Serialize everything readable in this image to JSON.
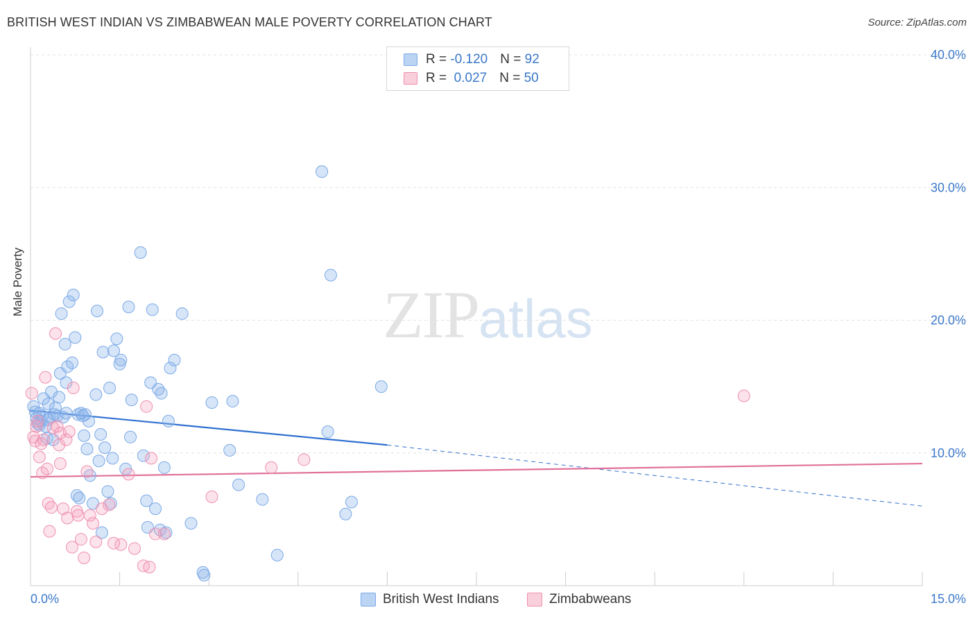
{
  "header": {
    "title": "BRITISH WEST INDIAN VS ZIMBABWEAN MALE POVERTY CORRELATION CHART",
    "source": "Source: ZipAtlas.com"
  },
  "watermark": {
    "zip": "ZIP",
    "atlas": "atlas"
  },
  "legend": {
    "rows": [
      {
        "r_label": "R = ",
        "r_value": "-0.120",
        "n_label": "N = ",
        "n_value": "92",
        "color": "#a8c6ef"
      },
      {
        "r_label": "R = ",
        "r_value": " 0.027",
        "n_label": "N = ",
        "n_value": "50",
        "color": "#f5b3c6"
      }
    ]
  },
  "bottom_legend": {
    "series1": "British West Indians",
    "series2": "Zimbabweans"
  },
  "colors": {
    "blue": "#7aa9e6",
    "blue_line": "#2f6fd0",
    "pink": "#ee8fae",
    "pink_line": "#e0709a",
    "tick": "#3a78c9"
  },
  "chart_data": {
    "type": "scatter",
    "title": "BRITISH WEST INDIAN VS ZIMBABWEAN MALE POVERTY CORRELATION CHART",
    "xlabel": "",
    "ylabel": "Male Poverty",
    "xlim": [
      0,
      15
    ],
    "ylim": [
      0,
      40
    ],
    "x_tick_labels": [
      "0.0%",
      "15.0%"
    ],
    "y_ticks": [
      10,
      20,
      30,
      40
    ],
    "y_tick_labels": [
      "10.0%",
      "20.0%",
      "30.0%",
      "40.0%"
    ],
    "series": [
      {
        "name": "British West Indians",
        "r": -0.12,
        "n": 92,
        "trend": {
          "x0": 0,
          "y0": 13.2,
          "x1": 6.0,
          "y1": 10.6,
          "dash_to_x": 15,
          "dash_to_y": 6.0
        },
        "points": [
          [
            0.05,
            13.5
          ],
          [
            0.08,
            13.1
          ],
          [
            0.1,
            12.6
          ],
          [
            0.12,
            12.2
          ],
          [
            0.15,
            13.0
          ],
          [
            0.18,
            12.4
          ],
          [
            0.2,
            12.8
          ],
          [
            0.22,
            14.1
          ],
          [
            0.25,
            12.0
          ],
          [
            0.28,
            11.1
          ],
          [
            0.3,
            13.7
          ],
          [
            0.32,
            12.7
          ],
          [
            0.35,
            14.6
          ],
          [
            0.38,
            11.0
          ],
          [
            0.4,
            12.9
          ],
          [
            0.42,
            13.4
          ],
          [
            0.45,
            12.8
          ],
          [
            0.48,
            14.2
          ],
          [
            0.5,
            16.0
          ],
          [
            0.52,
            20.5
          ],
          [
            0.55,
            12.7
          ],
          [
            0.58,
            18.2
          ],
          [
            0.6,
            15.3
          ],
          [
            0.62,
            16.5
          ],
          [
            0.65,
            21.4
          ],
          [
            0.7,
            16.8
          ],
          [
            0.72,
            21.9
          ],
          [
            0.75,
            18.7
          ],
          [
            0.78,
            6.8
          ],
          [
            0.8,
            12.9
          ],
          [
            0.82,
            6.6
          ],
          [
            0.85,
            13.0
          ],
          [
            0.88,
            12.8
          ],
          [
            0.9,
            11.3
          ],
          [
            0.92,
            12.9
          ],
          [
            0.95,
            10.3
          ],
          [
            0.98,
            12.4
          ],
          [
            1.0,
            8.3
          ],
          [
            1.05,
            6.2
          ],
          [
            1.1,
            14.4
          ],
          [
            1.12,
            20.7
          ],
          [
            1.15,
            9.4
          ],
          [
            1.18,
            11.4
          ],
          [
            1.2,
            4.0
          ],
          [
            1.22,
            17.6
          ],
          [
            1.25,
            10.4
          ],
          [
            1.3,
            7.1
          ],
          [
            1.33,
            14.9
          ],
          [
            1.38,
            9.6
          ],
          [
            1.4,
            17.7
          ],
          [
            1.45,
            18.6
          ],
          [
            1.5,
            16.7
          ],
          [
            1.52,
            17.0
          ],
          [
            1.6,
            8.8
          ],
          [
            1.65,
            21.0
          ],
          [
            1.68,
            11.2
          ],
          [
            1.7,
            14.0
          ],
          [
            1.85,
            25.1
          ],
          [
            1.9,
            9.8
          ],
          [
            1.95,
            6.4
          ],
          [
            1.97,
            4.4
          ],
          [
            2.02,
            15.3
          ],
          [
            2.05,
            20.8
          ],
          [
            2.1,
            5.8
          ],
          [
            2.15,
            14.8
          ],
          [
            2.18,
            4.2
          ],
          [
            2.2,
            14.5
          ],
          [
            2.25,
            8.9
          ],
          [
            2.28,
            4.0
          ],
          [
            2.32,
            12.4
          ],
          [
            2.35,
            16.4
          ],
          [
            2.42,
            17.0
          ],
          [
            2.55,
            20.5
          ],
          [
            2.7,
            4.7
          ],
          [
            2.9,
            1.0
          ],
          [
            2.92,
            0.8
          ],
          [
            3.05,
            13.8
          ],
          [
            3.35,
            10.2
          ],
          [
            3.4,
            13.9
          ],
          [
            3.5,
            7.6
          ],
          [
            3.9,
            6.5
          ],
          [
            4.15,
            2.3
          ],
          [
            4.9,
            31.2
          ],
          [
            5.0,
            11.6
          ],
          [
            5.05,
            23.4
          ],
          [
            5.3,
            5.4
          ],
          [
            5.4,
            6.3
          ],
          [
            5.9,
            15.0
          ],
          [
            0.15,
            12.1
          ],
          [
            0.3,
            12.5
          ],
          [
            0.6,
            13.0
          ],
          [
            1.35,
            6.2
          ]
        ]
      },
      {
        "name": "Zimbabweans",
        "r": 0.027,
        "n": 50,
        "trend": {
          "x0": 0,
          "y0": 8.2,
          "x1": 15,
          "y1": 9.2
        },
        "points": [
          [
            0.02,
            14.5
          ],
          [
            0.05,
            11.2
          ],
          [
            0.08,
            10.9
          ],
          [
            0.1,
            12.0
          ],
          [
            0.12,
            12.4
          ],
          [
            0.15,
            9.7
          ],
          [
            0.18,
            10.7
          ],
          [
            0.2,
            8.5
          ],
          [
            0.22,
            11.0
          ],
          [
            0.25,
            15.7
          ],
          [
            0.28,
            8.8
          ],
          [
            0.3,
            6.2
          ],
          [
            0.32,
            4.1
          ],
          [
            0.35,
            5.9
          ],
          [
            0.38,
            11.9
          ],
          [
            0.42,
            19.0
          ],
          [
            0.45,
            12.0
          ],
          [
            0.48,
            10.6
          ],
          [
            0.5,
            9.2
          ],
          [
            0.55,
            5.8
          ],
          [
            0.62,
            5.1
          ],
          [
            0.65,
            11.6
          ],
          [
            0.7,
            2.9
          ],
          [
            0.72,
            14.9
          ],
          [
            0.78,
            5.6
          ],
          [
            0.8,
            5.3
          ],
          [
            0.85,
            3.5
          ],
          [
            0.9,
            2.1
          ],
          [
            0.95,
            8.6
          ],
          [
            1.0,
            5.3
          ],
          [
            1.05,
            4.7
          ],
          [
            1.1,
            3.3
          ],
          [
            1.2,
            5.8
          ],
          [
            1.32,
            6.1
          ],
          [
            1.52,
            3.1
          ],
          [
            1.65,
            8.4
          ],
          [
            1.75,
            2.8
          ],
          [
            1.9,
            1.5
          ],
          [
            1.95,
            13.5
          ],
          [
            2.0,
            1.4
          ],
          [
            2.03,
            9.6
          ],
          [
            2.1,
            3.9
          ],
          [
            2.25,
            3.9
          ],
          [
            3.05,
            6.7
          ],
          [
            4.05,
            8.9
          ],
          [
            4.6,
            9.5
          ],
          [
            12.0,
            14.3
          ],
          [
            0.6,
            11.0
          ],
          [
            1.4,
            3.2
          ],
          [
            0.5,
            11.5
          ]
        ]
      }
    ]
  }
}
